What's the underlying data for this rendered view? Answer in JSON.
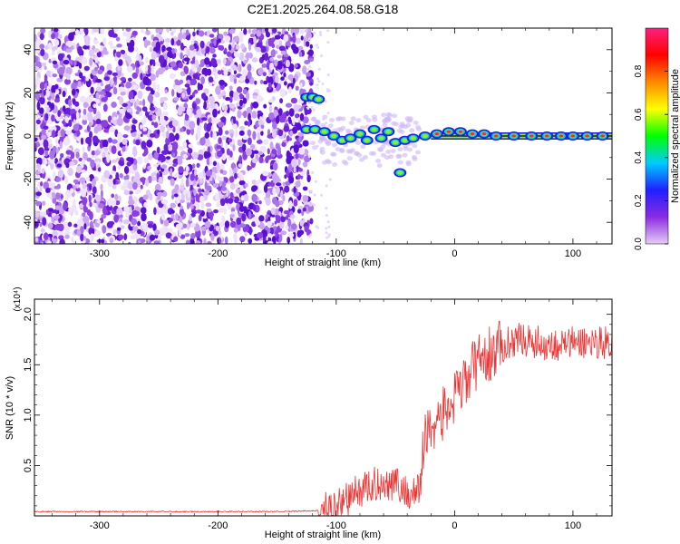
{
  "title": "C2E1.2025.264.08.58.G18",
  "colors": {
    "snr_line": "#ee3333",
    "axis": "#000000",
    "spectrogram_noise": "#6a1fd8",
    "track_outer": "#1e1ee6",
    "track_mid": "#00d0d0",
    "track_inner": "#90ee20",
    "track_core": "#ff2050"
  },
  "chart_data": [
    {
      "type": "heatmap",
      "name": "spectrogram",
      "title": "C2E1.2025.264.08.58.G18",
      "xlabel": "Height of straight line (km)",
      "ylabel": "Frequency (Hz)",
      "xlim": [
        -355,
        133
      ],
      "ylim": [
        -50,
        50
      ],
      "x_ticks": [
        -300,
        -200,
        -100,
        0,
        100
      ],
      "y_ticks": [
        -40,
        -20,
        0,
        20,
        40
      ],
      "noise_region_x": [
        -355,
        -125
      ],
      "track_points": [
        {
          "x": -125,
          "y": 18
        },
        {
          "x": -120,
          "y": 18
        },
        {
          "x": -115,
          "y": 17
        },
        {
          "x": -125,
          "y": 3
        },
        {
          "x": -118,
          "y": 3
        },
        {
          "x": -110,
          "y": 2
        },
        {
          "x": -102,
          "y": 0
        },
        {
          "x": -95,
          "y": -2
        },
        {
          "x": -88,
          "y": -1
        },
        {
          "x": -80,
          "y": 1
        },
        {
          "x": -74,
          "y": -2
        },
        {
          "x": -68,
          "y": 3
        },
        {
          "x": -62,
          "y": -1
        },
        {
          "x": -56,
          "y": 2
        },
        {
          "x": -50,
          "y": -3
        },
        {
          "x": -46,
          "y": -17
        },
        {
          "x": -42,
          "y": -2
        },
        {
          "x": -35,
          "y": -1
        },
        {
          "x": -25,
          "y": 0
        },
        {
          "x": -15,
          "y": 1
        },
        {
          "x": -5,
          "y": 2
        },
        {
          "x": 5,
          "y": 2
        },
        {
          "x": 15,
          "y": 1
        },
        {
          "x": 25,
          "y": 1
        },
        {
          "x": 35,
          "y": 0
        },
        {
          "x": 50,
          "y": 0
        },
        {
          "x": 65,
          "y": 0
        },
        {
          "x": 78,
          "y": 0
        },
        {
          "x": 90,
          "y": 0
        },
        {
          "x": 100,
          "y": 0
        },
        {
          "x": 112,
          "y": 0
        },
        {
          "x": 125,
          "y": 0
        }
      ],
      "colorbar": {
        "label": "Normalized spectral amplitude",
        "range": [
          0,
          1
        ],
        "ticks": [
          "0.0",
          "0.2",
          "0.4",
          "0.6",
          "0.8"
        ],
        "colors": [
          "#e6ccf5",
          "#8a2be2",
          "#2020ff",
          "#00ccff",
          "#00ff00",
          "#ffff00",
          "#ff8800",
          "#ff0000",
          "#ff2080"
        ]
      }
    },
    {
      "type": "line",
      "name": "snr",
      "xlabel": "Height of straight line (km)",
      "ylabel": "SNR (10 * v/v)",
      "y_multiplier": "(x10⁴)",
      "xlim": [
        -355,
        133
      ],
      "ylim": [
        0,
        2.15
      ],
      "x_ticks": [
        -300,
        -200,
        -100,
        0,
        100
      ],
      "y_ticks": [
        0.5,
        1.0,
        1.5,
        2.0
      ],
      "y_tick_labels": [
        "0.5",
        "1.0",
        "1.5",
        "2.0"
      ],
      "series": [
        {
          "name": "SNR",
          "x": [
            -355,
            -300,
            -250,
            -200,
            -150,
            -115,
            -100,
            -90,
            -80,
            -70,
            -60,
            -50,
            -40,
            -30,
            -25,
            -20,
            -10,
            0,
            10,
            20,
            30,
            40,
            50,
            60,
            70,
            80,
            90,
            100,
            110,
            120,
            133
          ],
          "y": [
            0.04,
            0.04,
            0.04,
            0.04,
            0.04,
            0.05,
            0.1,
            0.18,
            0.25,
            0.3,
            0.33,
            0.33,
            0.22,
            0.25,
            0.8,
            0.9,
            1.0,
            1.15,
            1.35,
            1.55,
            1.6,
            1.68,
            1.75,
            1.75,
            1.72,
            1.7,
            1.7,
            1.72,
            1.72,
            1.73,
            1.72
          ]
        }
      ]
    }
  ],
  "labels": {
    "top_xlabel": "Height of straight line (km)",
    "top_ylabel": "Frequency (Hz)",
    "bottom_xlabel": "Height of straight line (km)",
    "bottom_ylabel": "SNR (10 * v/v)",
    "multiplier": "(x10⁴)",
    "colorbar_label": "Normalized spectral amplitude"
  }
}
